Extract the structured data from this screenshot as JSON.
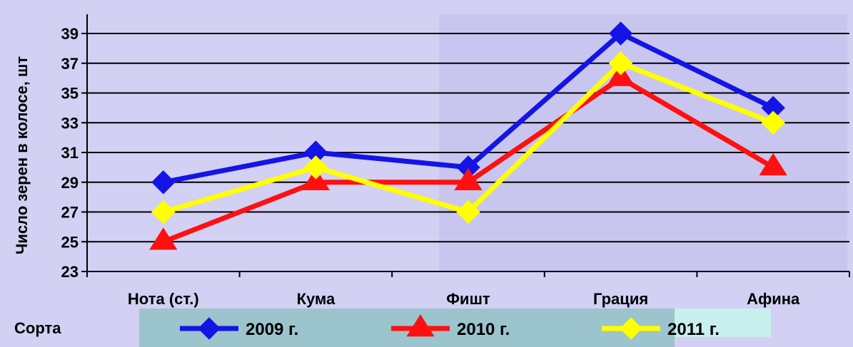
{
  "chart_data": {
    "type": "line",
    "title": "",
    "ylabel": "Число зерен в колосе, шт",
    "xlabel": "Сорта",
    "categories": [
      "Нота (ст.)",
      "Кума",
      "Фишт",
      "Грация",
      "Афина"
    ],
    "ylim": [
      23,
      40
    ],
    "yticks": [
      23,
      25,
      27,
      29,
      31,
      33,
      35,
      37,
      39
    ],
    "grid": true,
    "legend_position": "bottom",
    "series": [
      {
        "name": "2009 г.",
        "color": "#1414e6",
        "marker": "diamond",
        "values": [
          29,
          31,
          30,
          39,
          34
        ]
      },
      {
        "name": "2010 г.",
        "color": "#ff1010",
        "marker": "triangle",
        "values": [
          25,
          29,
          29,
          36,
          30
        ]
      },
      {
        "name": "2011 г.",
        "color": "#ffff00",
        "marker": "diamond",
        "values": [
          27,
          30,
          27,
          37,
          33
        ]
      }
    ],
    "colors": {
      "background": "#d2d0f3",
      "legend_band": "#9cc4cc",
      "grid": "#000000"
    }
  }
}
